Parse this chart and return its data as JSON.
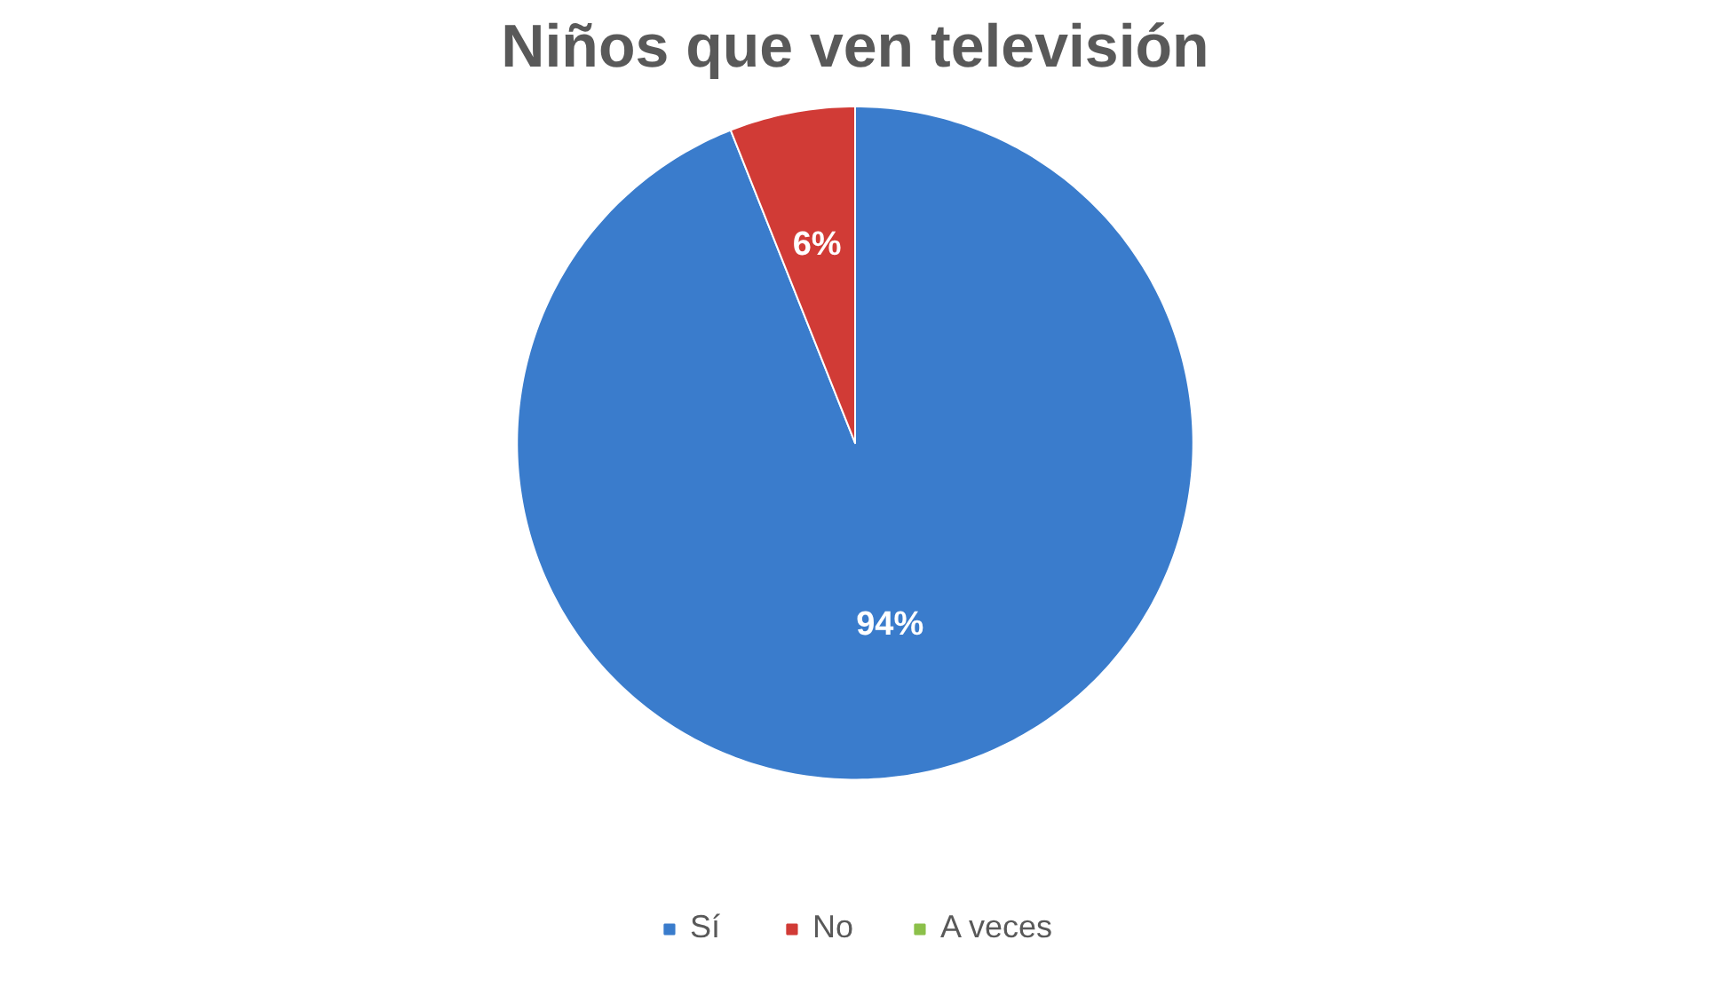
{
  "chart_data": {
    "type": "pie",
    "title": "Niños que ven televisión",
    "categories": [
      "Sí",
      "No",
      "A veces"
    ],
    "values": [
      94,
      6,
      0
    ],
    "colors": [
      "#3a7ccc",
      "#d13b36",
      "#8cc04a"
    ],
    "value_labels": [
      "94%",
      "6%",
      null
    ],
    "legend": "bottom"
  }
}
